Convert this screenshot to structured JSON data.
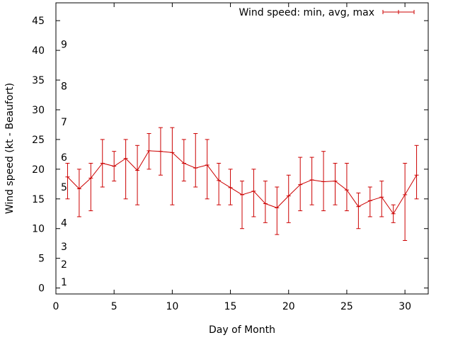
{
  "chart_data": {
    "type": "line",
    "xlabel": "Day of Month",
    "ylabel": "Wind speed (kt - Beaufort)",
    "xlim": [
      0,
      32
    ],
    "ylim": [
      -1,
      48
    ],
    "x_ticks": [
      0,
      5,
      10,
      15,
      20,
      25,
      30
    ],
    "y_ticks": [
      0,
      5,
      10,
      15,
      20,
      25,
      30,
      35,
      40,
      45
    ],
    "beaufort_labels": [
      {
        "label": "1",
        "y": 1
      },
      {
        "label": "2",
        "y": 4
      },
      {
        "label": "3",
        "y": 7
      },
      {
        "label": "4",
        "y": 11
      },
      {
        "label": "5",
        "y": 17
      },
      {
        "label": "6",
        "y": 22
      },
      {
        "label": "7",
        "y": 28
      },
      {
        "label": "8",
        "y": 34
      },
      {
        "label": "9",
        "y": 41
      }
    ],
    "legend_position": "top-right",
    "grid": false,
    "series": [
      {
        "name": "Wind speed: min, avg, max",
        "color": "#cc0000",
        "x": [
          1,
          2,
          3,
          4,
          5,
          6,
          7,
          8,
          9,
          10,
          11,
          12,
          13,
          14,
          15,
          16,
          17,
          18,
          19,
          20,
          21,
          22,
          23,
          24,
          25,
          26,
          27,
          28,
          29,
          30,
          31
        ],
        "avg": [
          18.7,
          16.7,
          18.5,
          21.0,
          20.5,
          21.8,
          19.8,
          23.1,
          23.0,
          22.8,
          21.0,
          20.2,
          20.7,
          18.1,
          16.9,
          15.7,
          16.3,
          14.2,
          13.5,
          15.5,
          17.4,
          18.2,
          17.9,
          18.0,
          16.5,
          13.7,
          14.7,
          15.3,
          12.5,
          15.7,
          19.0
        ],
        "min": [
          15,
          12,
          13,
          17,
          18,
          15,
          14,
          20,
          19,
          14,
          18,
          17,
          15,
          14,
          14,
          10,
          12,
          11,
          9,
          11,
          13,
          14,
          13,
          14,
          13,
          10,
          12,
          12,
          11,
          8,
          15
        ],
        "max": [
          21,
          20,
          21,
          25,
          23,
          25,
          24,
          26,
          27,
          27,
          25,
          26,
          25,
          21,
          20,
          18,
          20,
          18,
          17,
          19,
          22,
          22,
          23,
          21,
          21,
          16,
          17,
          18,
          14,
          21,
          24
        ]
      }
    ]
  }
}
